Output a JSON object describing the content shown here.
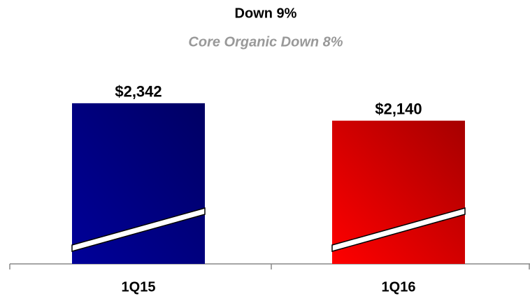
{
  "chart_data": {
    "type": "bar",
    "title": "Down 9%",
    "subtitle": "Core Organic Down 8%",
    "categories": [
      "1Q15",
      "1Q16"
    ],
    "values": [
      2342,
      2140
    ],
    "value_labels": [
      "$2,342",
      "$2,140"
    ],
    "colors": [
      "#000099",
      "#ff0000"
    ],
    "ylim": [
      480,
      2600
    ]
  }
}
